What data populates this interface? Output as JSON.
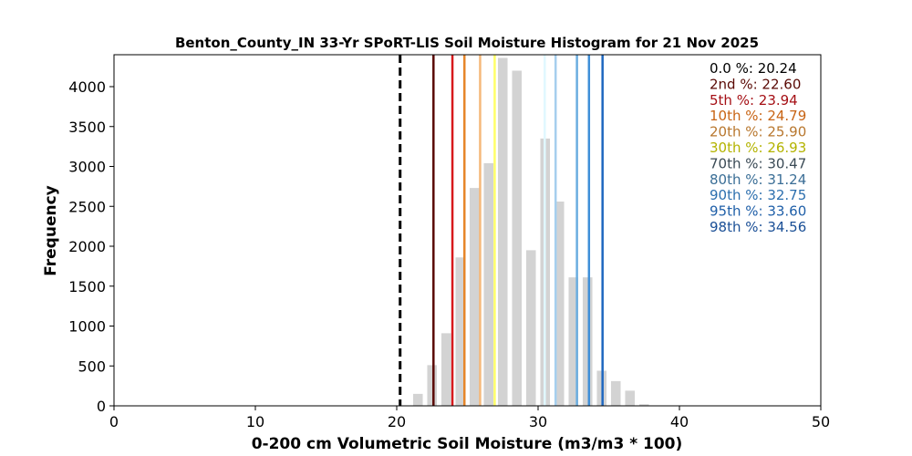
{
  "chart_data": {
    "type": "bar",
    "title": "Benton_County_IN 33-Yr SPoRT-LIS Soil Moisture Histogram for 21 Nov 2025",
    "xlabel": "0-200 cm Volumetric Soil Moisture (m3/m3 * 100)",
    "ylabel": "Frequency",
    "xlim": [
      0,
      50
    ],
    "ylim": [
      0,
      4400
    ],
    "x_ticks": [
      0,
      10,
      20,
      30,
      40,
      50
    ],
    "y_ticks": [
      0,
      500,
      1000,
      1500,
      2000,
      2500,
      3000,
      3500,
      4000
    ],
    "bar_color": "#d3d3d3",
    "bars": [
      {
        "x": 21.5,
        "value": 150
      },
      {
        "x": 22.5,
        "value": 510
      },
      {
        "x": 23.5,
        "value": 910
      },
      {
        "x": 24.5,
        "value": 1860
      },
      {
        "x": 25.5,
        "value": 2730
      },
      {
        "x": 26.5,
        "value": 3040
      },
      {
        "x": 27.5,
        "value": 4360
      },
      {
        "x": 28.5,
        "value": 4200
      },
      {
        "x": 29.5,
        "value": 1950
      },
      {
        "x": 30.5,
        "value": 3350
      },
      {
        "x": 31.5,
        "value": 2560
      },
      {
        "x": 32.5,
        "value": 1610
      },
      {
        "x": 33.5,
        "value": 1610
      },
      {
        "x": 34.5,
        "value": 440
      },
      {
        "x": 35.5,
        "value": 310
      },
      {
        "x": 36.5,
        "value": 190
      },
      {
        "x": 37.5,
        "value": 20
      }
    ],
    "current_value": {
      "x": 20.24,
      "color": "#000000",
      "style": "dashed"
    },
    "percentiles": [
      {
        "label": "0.0 %: 20.24",
        "value": 20.24,
        "color": "#000000",
        "line": false
      },
      {
        "label": "2nd %: 22.60",
        "value": 22.6,
        "color": "#5a0a05",
        "line": true
      },
      {
        "label": "5th %: 23.94",
        "value": 23.94,
        "color": "#d7191c",
        "text_color": "#a50f15",
        "line": true
      },
      {
        "label": "10th %: 24.79",
        "value": 24.79,
        "color": "#e6862a",
        "text_color": "#c86414",
        "line": true
      },
      {
        "label": "20th %: 25.90",
        "value": 25.9,
        "color": "#f5b87a",
        "text_color": "#b8772e",
        "line": true
      },
      {
        "label": "30th %: 26.93",
        "value": 26.93,
        "color": "#ffff66",
        "text_color": "#b3b300",
        "line": true
      },
      {
        "label": "70th %: 30.47",
        "value": 30.47,
        "color": "#e0f8ff",
        "text_color": "#3a4a55",
        "line": true
      },
      {
        "label": "80th %: 31.24",
        "value": 31.24,
        "color": "#a6cfee",
        "text_color": "#3a6e96",
        "line": true
      },
      {
        "label": "90th %: 32.75",
        "value": 32.75,
        "color": "#6baee0",
        "text_color": "#2c6fae",
        "line": true
      },
      {
        "label": "95th %: 33.60",
        "value": 33.6,
        "color": "#3f8fd8",
        "text_color": "#1f5fa8",
        "line": true
      },
      {
        "label": "98th %: 34.56",
        "value": 34.56,
        "color": "#1f68c0",
        "text_color": "#1a4f96",
        "line": true
      }
    ]
  }
}
